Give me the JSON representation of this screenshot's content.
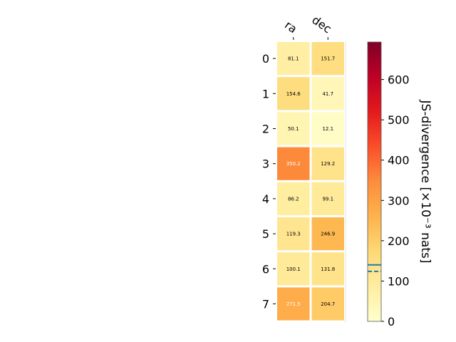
{
  "chart_data": {
    "type": "heatmap",
    "x_categories": [
      "ra",
      "dec"
    ],
    "y_categories": [
      "0",
      "1",
      "2",
      "3",
      "4",
      "5",
      "6",
      "7"
    ],
    "values": [
      [
        81.1,
        151.7
      ],
      [
        154.6,
        41.7
      ],
      [
        50.1,
        12.1
      ],
      [
        350.2,
        129.2
      ],
      [
        86.2,
        99.1
      ],
      [
        119.3,
        246.9
      ],
      [
        100.1,
        131.8
      ],
      [
        271.5,
        204.7
      ]
    ],
    "value_labels": [
      [
        "81.1",
        "151.7"
      ],
      [
        "154.6",
        "41.7"
      ],
      [
        "50.1",
        "12.1"
      ],
      [
        "350.2",
        "129.2"
      ],
      [
        "86.2",
        "99.1"
      ],
      [
        "119.3",
        "246.9"
      ],
      [
        "100.1",
        "131.8"
      ],
      [
        "271.5",
        "204.7"
      ]
    ],
    "colorbar": {
      "label": "JS-divergence [×10⁻³ nats]",
      "colormap": "YlOrRd",
      "range": [
        0,
        693
      ],
      "ticks": [
        "0",
        "100",
        "200",
        "300",
        "400",
        "500",
        "600"
      ],
      "tick_values": [
        0,
        100,
        200,
        300,
        400,
        500,
        600
      ],
      "solid_marker": 140,
      "dashed_marker": 124,
      "marker_color": "#1f77b4"
    },
    "grid": false,
    "legend": "none"
  }
}
